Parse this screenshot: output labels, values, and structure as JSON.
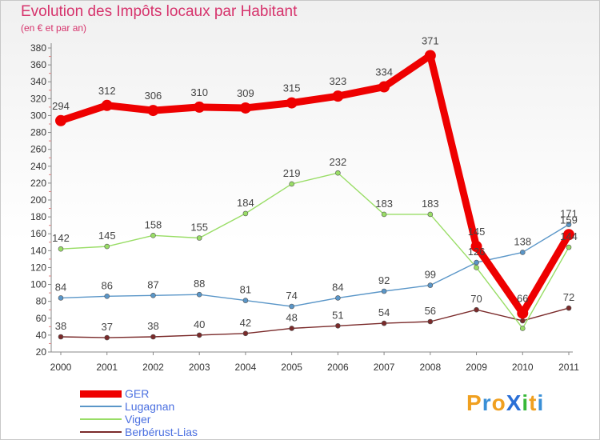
{
  "header": {
    "title": "Evolution des Impôts locaux par Habitant",
    "subtitle": "(en € et par an)"
  },
  "logo": {
    "text": "ProXiti",
    "letters": [
      "P",
      "r",
      "o",
      "X",
      "i",
      "t",
      "i"
    ],
    "letter_colors": [
      "#f0a020",
      "#3a8fd6",
      "#f0a020",
      "#2a6fd6",
      "#38b838",
      "#f0a020",
      "#3a8fd6"
    ]
  },
  "chart_data": {
    "type": "line",
    "title": "Evolution des Impôts locaux par Habitant",
    "subtitle": "(en € et par an)",
    "xlabel": "",
    "ylabel": "",
    "categories": [
      "2000",
      "2001",
      "2002",
      "2003",
      "2004",
      "2005",
      "2006",
      "2007",
      "2008",
      "2009",
      "2010",
      "2011"
    ],
    "ylim": [
      20,
      380
    ],
    "yticks": [
      20,
      40,
      60,
      80,
      100,
      120,
      140,
      160,
      180,
      200,
      220,
      240,
      260,
      280,
      300,
      320,
      340,
      360,
      380
    ],
    "grid": false,
    "legend_position": "bottom-left",
    "series": [
      {
        "name": "GER",
        "color": "#ee0000",
        "values": [
          294,
          312,
          306,
          310,
          309,
          315,
          323,
          334,
          371,
          145,
          66,
          159
        ],
        "labels": [
          "294",
          "312",
          "306",
          "310",
          "309",
          "315",
          "323",
          "334",
          "371",
          "145",
          "66",
          "159"
        ]
      },
      {
        "name": "Lugagnan",
        "color": "#5a96c8",
        "values": [
          84,
          86,
          87,
          88,
          81,
          74,
          84,
          92,
          99,
          126,
          138,
          171
        ],
        "labels": [
          "84",
          "86",
          "87",
          "88",
          "81",
          "74",
          "84",
          "92",
          "99",
          "126",
          "138",
          "171"
        ]
      },
      {
        "name": "Viger",
        "color": "#99dd66",
        "values": [
          142,
          145,
          158,
          155,
          184,
          219,
          232,
          183,
          183,
          120,
          48,
          144
        ],
        "labels": [
          "142",
          "145",
          "158",
          "155",
          "184",
          "219",
          "232",
          "183",
          "183",
          "",
          "",
          "144"
        ]
      },
      {
        "name": "Berbérust-Lias",
        "color": "#7a2a2a",
        "values": [
          38,
          37,
          38,
          40,
          42,
          48,
          51,
          54,
          56,
          70,
          57,
          72
        ],
        "labels": [
          "38",
          "37",
          "38",
          "40",
          "42",
          "48",
          "51",
          "54",
          "56",
          "70",
          "",
          "72"
        ]
      }
    ]
  },
  "legend": {
    "items": [
      {
        "name": "GER",
        "color": "#ee0000",
        "label_color": "#4a6fe0"
      },
      {
        "name": "Lugagnan",
        "color": "#5a96c8",
        "label_color": "#4a6fe0"
      },
      {
        "name": "Viger",
        "color": "#99dd66",
        "label_color": "#4a6fe0"
      },
      {
        "name": "Berbérust-Lias",
        "color": "#7a2a2a",
        "label_color": "#4a6fe0"
      }
    ]
  }
}
